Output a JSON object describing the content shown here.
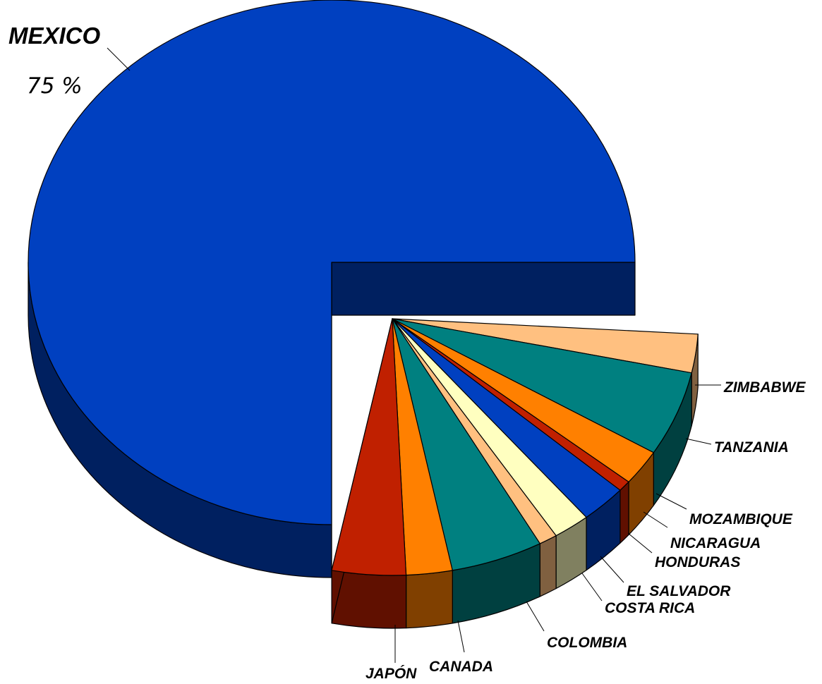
{
  "chart_data": {
    "type": "pie",
    "style": "3d-exploded-pie-of-pie",
    "slices": [
      {
        "label": "MEXICO",
        "percent_label": "75 %",
        "value": 75,
        "color": "#0040C0",
        "side": "#002060"
      },
      {
        "label": "JAPÓN",
        "value": 4.0,
        "color": "#C02000",
        "side": "#601000"
      },
      {
        "label": "CANADA",
        "value": 2.5,
        "color": "#FF8000",
        "side": "#804000"
      },
      {
        "label": "COLOMBIA",
        "value": 5.0,
        "color": "#008080",
        "side": "#004040"
      },
      {
        "label": "COSTA RICA",
        "value": 1.0,
        "color": "#FFC080",
        "side": "#806040"
      },
      {
        "label": "EL SALVADOR",
        "value": 2.0,
        "color": "#FFFFC0",
        "side": "#808060"
      },
      {
        "label": "HONDURAS",
        "value": 2.5,
        "color": "#0040C0",
        "side": "#002060"
      },
      {
        "label": "NICARAGUA",
        "value": 0.7,
        "color": "#C02000",
        "side": "#601000"
      },
      {
        "label": "MOZAMBIQUE",
        "value": 2.3,
        "color": "#FF8000",
        "side": "#804000"
      },
      {
        "label": "TANZANIA",
        "value": 5.5,
        "color": "#008080",
        "side": "#004040"
      },
      {
        "label": "ZIMBABWE",
        "value": 2.5,
        "color": "#FFC080",
        "side": "#806040"
      }
    ],
    "title": "",
    "legend": "none"
  }
}
